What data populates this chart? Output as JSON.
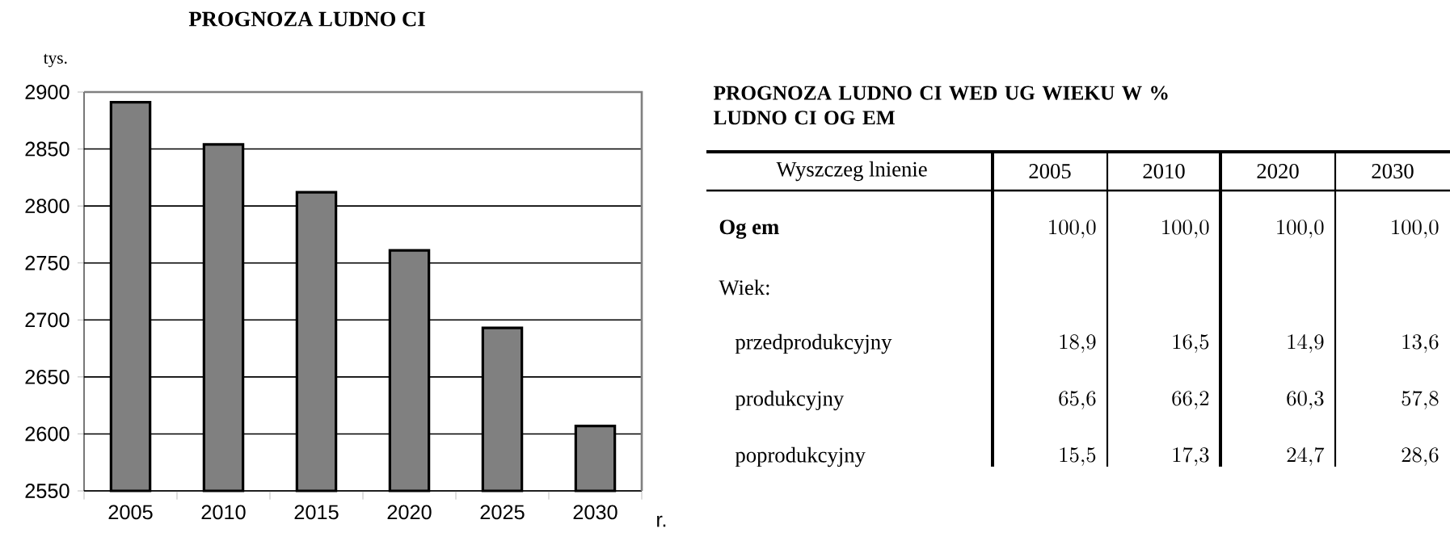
{
  "chart_data": [
    {
      "type": "bar",
      "title": "PROGNOZA LUDNO CI",
      "ylabel": "tys.",
      "xlabel": "r.",
      "categories": [
        "2005",
        "2010",
        "2015",
        "2020",
        "2025",
        "2030"
      ],
      "values": [
        2891,
        2854,
        2812,
        2761,
        2693,
        2607
      ],
      "color": "#808080",
      "ylim": [
        2550,
        2900
      ],
      "yticks": [
        2550,
        2600,
        2650,
        2700,
        2750,
        2800,
        2850,
        2900
      ],
      "grid": "y"
    },
    {
      "type": "other",
      "title": "PROGNOZA LUDNO CI WED UG WIEKU W % LUDNO CI OG EM",
      "ylabel": "Wyszczeg lnienie",
      "categories": [
        "2005",
        "2010",
        "2020",
        "2030"
      ],
      "annotations": [
        "Wiek:"
      ],
      "series": [
        {
          "name": "Og em",
          "values": [
            100.0,
            100.0,
            100.0,
            100.0
          ],
          "value_labels": [
            "100,0",
            "100,0",
            "100,0",
            "100,0"
          ]
        },
        {
          "name": "przedprodukcyjny",
          "values": [
            18.9,
            16.5,
            14.9,
            13.6
          ],
          "value_labels": [
            "18,9",
            "16,5",
            "14,9",
            "13,6"
          ]
        },
        {
          "name": "produkcyjny",
          "values": [
            65.6,
            66.2,
            60.3,
            57.8
          ],
          "value_labels": [
            "65,6",
            "66,2",
            "60,3",
            "57,8"
          ]
        },
        {
          "name": "poprodukcyjny",
          "values": [
            15.5,
            17.3,
            24.7,
            28.6
          ],
          "value_labels": [
            "15,5",
            "17,3",
            "24,7",
            "28,6"
          ]
        }
      ]
    }
  ]
}
